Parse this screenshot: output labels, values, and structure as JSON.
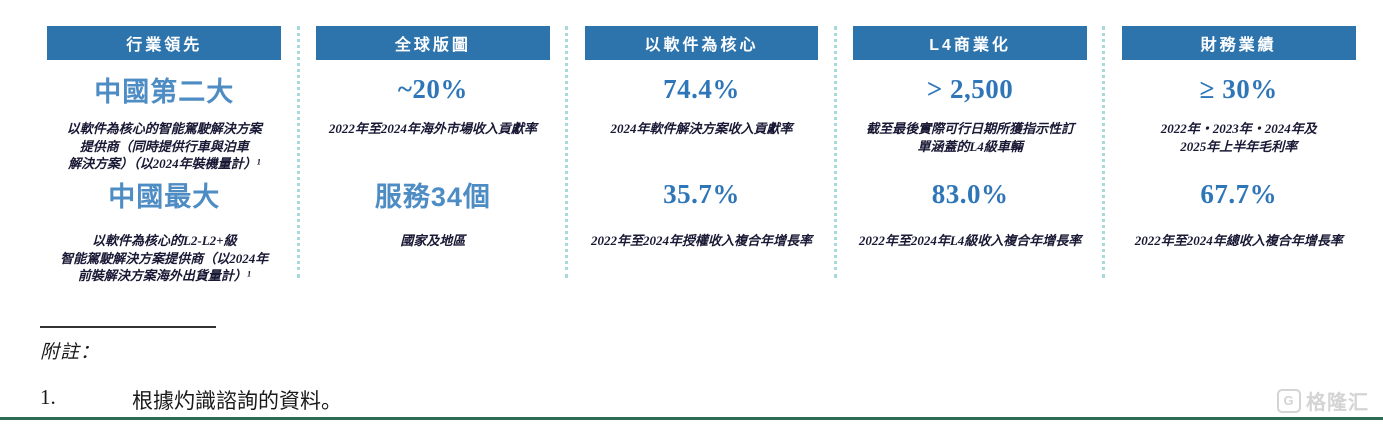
{
  "colors": {
    "header-bg": "#2d74ad",
    "num-blue": "#2f76b8",
    "cjk-blue": "#4e8cc4",
    "caption-ink": "#191935",
    "divider": "#a8dadc",
    "ink": "#1a1a1a",
    "bottom-line": "#2e6b55",
    "watermark": "#d4d4d4"
  },
  "columns": [
    {
      "header": "行業領先",
      "rows": [
        {
          "value": "中國第二大",
          "caption": "以軟件為核心的智能駕駛解決方案\n提供商（同時提供行車與泊車\n解決方案）（以2024年裝機量計）¹"
        },
        {
          "value": "中國最大",
          "caption": "以軟件為核心的L2-L2+級\n智能駕駛解決方案提供商（以2024年\n前裝解決方案海外出貨量計）¹"
        }
      ]
    },
    {
      "header": "全球版圖",
      "rows": [
        {
          "value": "~20%",
          "caption": "2022年至2024年海外市場收入貢獻率"
        },
        {
          "value": "服務34個",
          "caption": "國家及地區"
        }
      ]
    },
    {
      "header": "以軟件為核心",
      "rows": [
        {
          "value": "74.4%",
          "caption": "2024年軟件解決方案收入貢獻率"
        },
        {
          "value": "35.7%",
          "caption": "2022年至2024年授權收入複合年增長率"
        }
      ]
    },
    {
      "header": "L4商業化",
      "rows": [
        {
          "value": "> 2,500",
          "caption": "截至最後實際可行日期所獲指示性訂\n單涵蓋的L4級車輛"
        },
        {
          "value": "83.0%",
          "caption": "2022年至2024年L4級收入複合年增長率"
        }
      ]
    },
    {
      "header": "財務業績",
      "rows": [
        {
          "value": "≥ 30%",
          "caption": "2022年‧2023年‧2024年及\n2025年上半年毛利率"
        },
        {
          "value": "67.7%",
          "caption": "2022年至2024年總收入複合年增長率"
        }
      ]
    }
  ],
  "notes": {
    "heading": "附註：",
    "items": [
      {
        "num": "1.",
        "text": "根據灼識諮詢的資料。"
      }
    ]
  },
  "watermark": {
    "text": "格隆汇"
  }
}
